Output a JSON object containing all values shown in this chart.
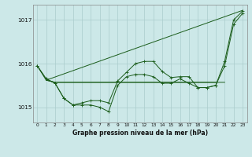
{
  "title": "Graphe pression niveau de la mer (hPa)",
  "x_labels": [
    "0",
    "1",
    "2",
    "3",
    "4",
    "5",
    "6",
    "7",
    "8",
    "9",
    "10",
    "11",
    "12",
    "13",
    "14",
    "15",
    "16",
    "17",
    "18",
    "19",
    "20",
    "21",
    "22",
    "23"
  ],
  "ylim": [
    1014.65,
    1017.35
  ],
  "yticks": [
    1015,
    1016,
    1017
  ],
  "background_color": "#cce8e8",
  "grid_color": "#aacccc",
  "line_color": "#1a5c1a",
  "diagonal": {
    "x": [
      1,
      23
    ],
    "y": [
      1015.62,
      1017.22
    ]
  },
  "series": [
    {
      "name": "line_bottom",
      "markers": true,
      "x": [
        0,
        1,
        2,
        3,
        4,
        5,
        6,
        7,
        8,
        9,
        10,
        11,
        12,
        13,
        14,
        15,
        16,
        17,
        18,
        19,
        20,
        21,
        22,
        23
      ],
      "y": [
        1015.95,
        1015.65,
        1015.55,
        1015.2,
        1015.05,
        1015.05,
        1015.05,
        1015.0,
        1014.9,
        1015.5,
        1015.7,
        1015.75,
        1015.75,
        1015.7,
        1015.55,
        1015.55,
        1015.65,
        1015.55,
        1015.45,
        1015.45,
        1015.5,
        1015.95,
        1016.9,
        1017.15
      ]
    },
    {
      "name": "line_mid1",
      "markers": false,
      "x": [
        0,
        1,
        2,
        3,
        4,
        5,
        6,
        7,
        8,
        9,
        10,
        11,
        12,
        13,
        14,
        15,
        16,
        17,
        18,
        19,
        20,
        21
      ],
      "y": [
        1015.95,
        1015.62,
        1015.57,
        1015.57,
        1015.57,
        1015.57,
        1015.57,
        1015.57,
        1015.57,
        1015.57,
        1015.57,
        1015.57,
        1015.57,
        1015.57,
        1015.57,
        1015.57,
        1015.57,
        1015.57,
        1015.57,
        1015.57,
        1015.57,
        1015.57
      ]
    },
    {
      "name": "line_mid2",
      "markers": false,
      "x": [
        1,
        2,
        3,
        4,
        5,
        6,
        7,
        8,
        9,
        10,
        11,
        12,
        13,
        14,
        15,
        16,
        17,
        18,
        19,
        20
      ],
      "y": [
        1015.62,
        1015.57,
        1015.57,
        1015.57,
        1015.57,
        1015.57,
        1015.57,
        1015.57,
        1015.57,
        1015.57,
        1015.57,
        1015.57,
        1015.57,
        1015.57,
        1015.57,
        1015.57,
        1015.57,
        1015.57,
        1015.57,
        1015.57
      ]
    },
    {
      "name": "line_upper",
      "markers": true,
      "x": [
        0,
        1,
        2,
        3,
        4,
        5,
        6,
        7,
        8,
        9,
        10,
        11,
        12,
        13,
        14,
        15,
        16,
        17,
        18,
        19,
        20,
        21,
        22,
        23
      ],
      "y": [
        1015.95,
        1015.65,
        1015.55,
        1015.2,
        1015.05,
        1015.1,
        1015.15,
        1015.15,
        1015.1,
        1015.6,
        1015.8,
        1016.0,
        1016.05,
        1016.05,
        1015.82,
        1015.68,
        1015.7,
        1015.7,
        1015.45,
        1015.45,
        1015.5,
        1016.05,
        1017.0,
        1017.2
      ]
    }
  ]
}
